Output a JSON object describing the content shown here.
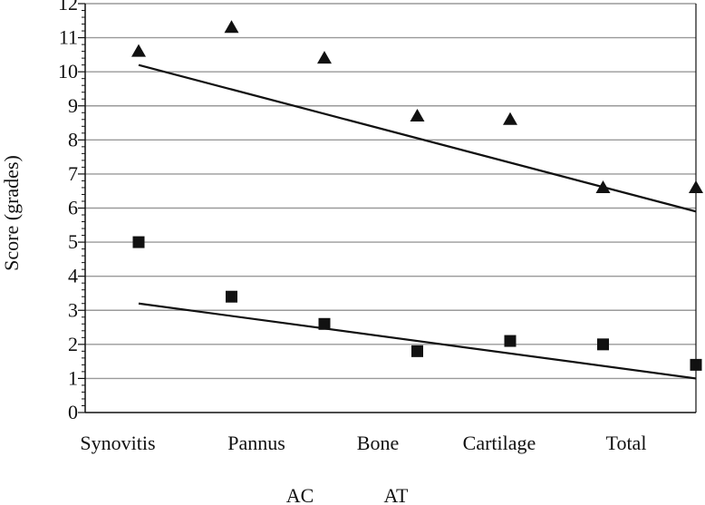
{
  "chart_data": {
    "type": "scatter",
    "title": "",
    "ylabel": "Score (grades)",
    "xlabel": "",
    "ylim": [
      0,
      12
    ],
    "yticks": [
      0,
      1,
      2,
      3,
      4,
      5,
      6,
      7,
      8,
      9,
      10,
      11,
      12
    ],
    "grid": true,
    "categories": [
      "Synovitis",
      "Pannus",
      "Bone",
      "Cartilage",
      "Total",
      ""
    ],
    "category_labels": [
      "Synovitis",
      "Pannus",
      "Bone",
      "Cartilage",
      "Total"
    ],
    "series": [
      {
        "name": "AT",
        "marker": "triangle",
        "color": "#111111",
        "values": [
          10.6,
          11.3,
          10.4,
          8.7,
          8.6,
          6.6,
          6.6
        ],
        "x_index": [
          0,
          1,
          2,
          3,
          4,
          5,
          6
        ],
        "trendline": {
          "start": 10.2,
          "end": 5.9
        }
      },
      {
        "name": "AC",
        "marker": "square",
        "color": "#111111",
        "values": [
          5.0,
          3.4,
          2.6,
          1.8,
          2.1,
          2.0,
          1.4
        ],
        "x_index": [
          0,
          1,
          2,
          3,
          4,
          5,
          6
        ],
        "trendline": {
          "start": 3.2,
          "end": 1.0
        }
      }
    ],
    "legend": {
      "position": "bottom-center",
      "entries": [
        "AC",
        "AT"
      ]
    }
  }
}
